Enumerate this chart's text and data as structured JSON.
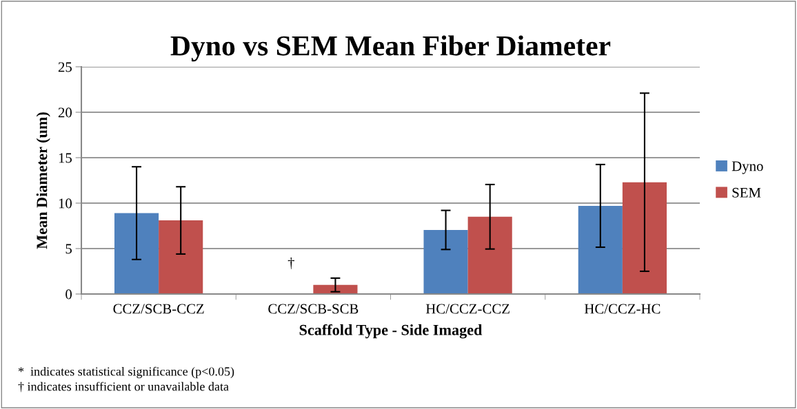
{
  "chart_data": {
    "type": "bar",
    "title": "Dyno vs SEM Mean Fiber Diameter",
    "xlabel": "Scaffold Type - Side Imaged",
    "ylabel": "Mean Diameter (um)",
    "categories": [
      "CCZ/SCB-CCZ",
      "CCZ/SCB-SCB",
      "HC/CCZ-CCZ",
      "HC/CCZ-HC"
    ],
    "series": [
      {
        "name": "Dyno",
        "color": "#4f81bd",
        "values": [
          8.9,
          0,
          7.05,
          9.7
        ],
        "errors": [
          5.1,
          null,
          2.15,
          4.55
        ]
      },
      {
        "name": "SEM",
        "color": "#c0504d",
        "values": [
          8.1,
          1.0,
          8.5,
          12.3
        ],
        "errors": [
          3.7,
          0.75,
          3.55,
          9.8
        ]
      }
    ],
    "ylim": [
      0,
      25
    ],
    "yticks": [
      0,
      5,
      10,
      15,
      20,
      25
    ],
    "grid": "y",
    "legend": "right",
    "annotations": [
      "†",
      "*  indicates statistical significance (p<0.05)",
      "† indicates insufficient or unavailable data"
    ]
  }
}
